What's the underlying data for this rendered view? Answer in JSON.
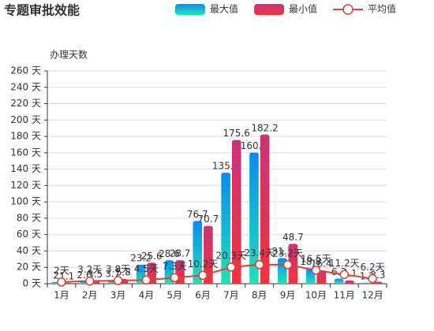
{
  "chart_data": {
    "type": "bar-line",
    "title": "专题审批效能",
    "y_axis_label": "办理天数",
    "categories": [
      "1月",
      "2月",
      "3月",
      "4月",
      "5月",
      "6月",
      "7月",
      "8月",
      "9月",
      "10月",
      "11月",
      "12月"
    ],
    "series": [
      {
        "name": "最大值",
        "type": "bar",
        "color": "#0a8cf0",
        "gradient": [
          "#0a8cf0",
          "#20e3b2"
        ],
        "values": [
          2,
          2.6,
          3.7,
          23.2,
          28.6,
          76.7,
          135.6,
          160.2,
          31.3,
          18.8,
          6.3,
          1.2
        ]
      },
      {
        "name": "最小值",
        "type": "bar",
        "color": "#e8334a",
        "gradient": [
          "#c8347a",
          "#f2333c"
        ],
        "values": [
          1.1,
          3.5,
          5.8,
          25.6,
          28.7,
          70.7,
          175.6,
          182.2,
          48.7,
          16.4,
          4.1,
          2.3
        ]
      },
      {
        "name": "平均值",
        "type": "line",
        "color": "#d9403a",
        "values": [
          2,
          3.2,
          3.8,
          4.5,
          7.3,
          10.2,
          20.3,
          23.4,
          23.2,
          16.5,
          11.2,
          6.2
        ],
        "value_labels": [
          "2天",
          "3.2天",
          "3.8天",
          "4.5天",
          "7.3天",
          "10.2天",
          "20.3天",
          "23.4天",
          "23.2天",
          "16.5天",
          "11.2天",
          "6.2天"
        ]
      }
    ],
    "ylim": [
      0,
      260
    ],
    "yticks": [
      {
        "value": 0,
        "label": "0 天"
      },
      {
        "value": 20,
        "label": "20 天"
      },
      {
        "value": 40,
        "label": "40 天"
      },
      {
        "value": 60,
        "label": "60 天"
      },
      {
        "value": 80,
        "label": "80 天"
      },
      {
        "value": 100,
        "label": "100 天"
      },
      {
        "value": 120,
        "label": "120 天"
      },
      {
        "value": 140,
        "label": "140 天"
      },
      {
        "value": 160,
        "label": "160 天"
      },
      {
        "value": 180,
        "label": "180 天"
      },
      {
        "value": 200,
        "label": "200 天"
      },
      {
        "value": 220,
        "label": "220 天"
      },
      {
        "value": 240,
        "label": "240 天"
      },
      {
        "value": 260,
        "label": "260 天"
      }
    ],
    "grid": true
  }
}
